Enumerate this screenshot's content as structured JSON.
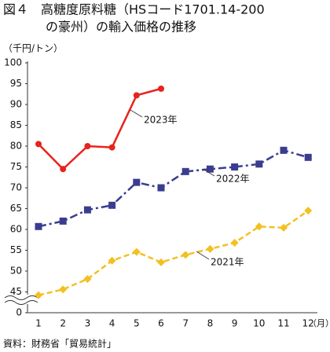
{
  "chart_data": {
    "type": "line",
    "title": [
      "図４　高糖度原料糖（HSコード1701.14-200",
      "の豪州）の輸入価格の推移"
    ],
    "y_unit": "（千円/トン）",
    "x_unit": "（月）",
    "source": "資料：財務省「貿易統計」",
    "categories": [
      "1",
      "2",
      "3",
      "4",
      "5",
      "6",
      "7",
      "8",
      "9",
      "10",
      "11",
      "12"
    ],
    "series": [
      {
        "name": "2023年",
        "color": "#e8221c",
        "dash": "solid",
        "marker": "circle",
        "values": [
          80.5,
          74.5,
          80,
          79.7,
          92.2,
          93.8,
          null,
          null,
          null,
          null,
          null,
          null
        ]
      },
      {
        "name": "2022年",
        "color": "#3a3d8f",
        "dash": "dashdot",
        "marker": "square",
        "values": [
          60.7,
          62,
          64.7,
          65.8,
          71.3,
          70,
          73.9,
          74.5,
          75,
          75.7,
          79,
          77.3
        ]
      },
      {
        "name": "2021年",
        "color": "#f3c020",
        "dash": "dashed",
        "marker": "diamond",
        "values": [
          44.2,
          45.6,
          48.1,
          52.5,
          54.6,
          52.1,
          53.9,
          55.3,
          56.8,
          60.7,
          60.4,
          64.5
        ]
      }
    ],
    "ylim": [
      40,
      100
    ],
    "yticks": [
      0,
      45,
      50,
      55,
      60,
      65,
      70,
      75,
      80,
      85,
      90,
      95,
      100
    ],
    "axis_break": true,
    "grid": false
  }
}
